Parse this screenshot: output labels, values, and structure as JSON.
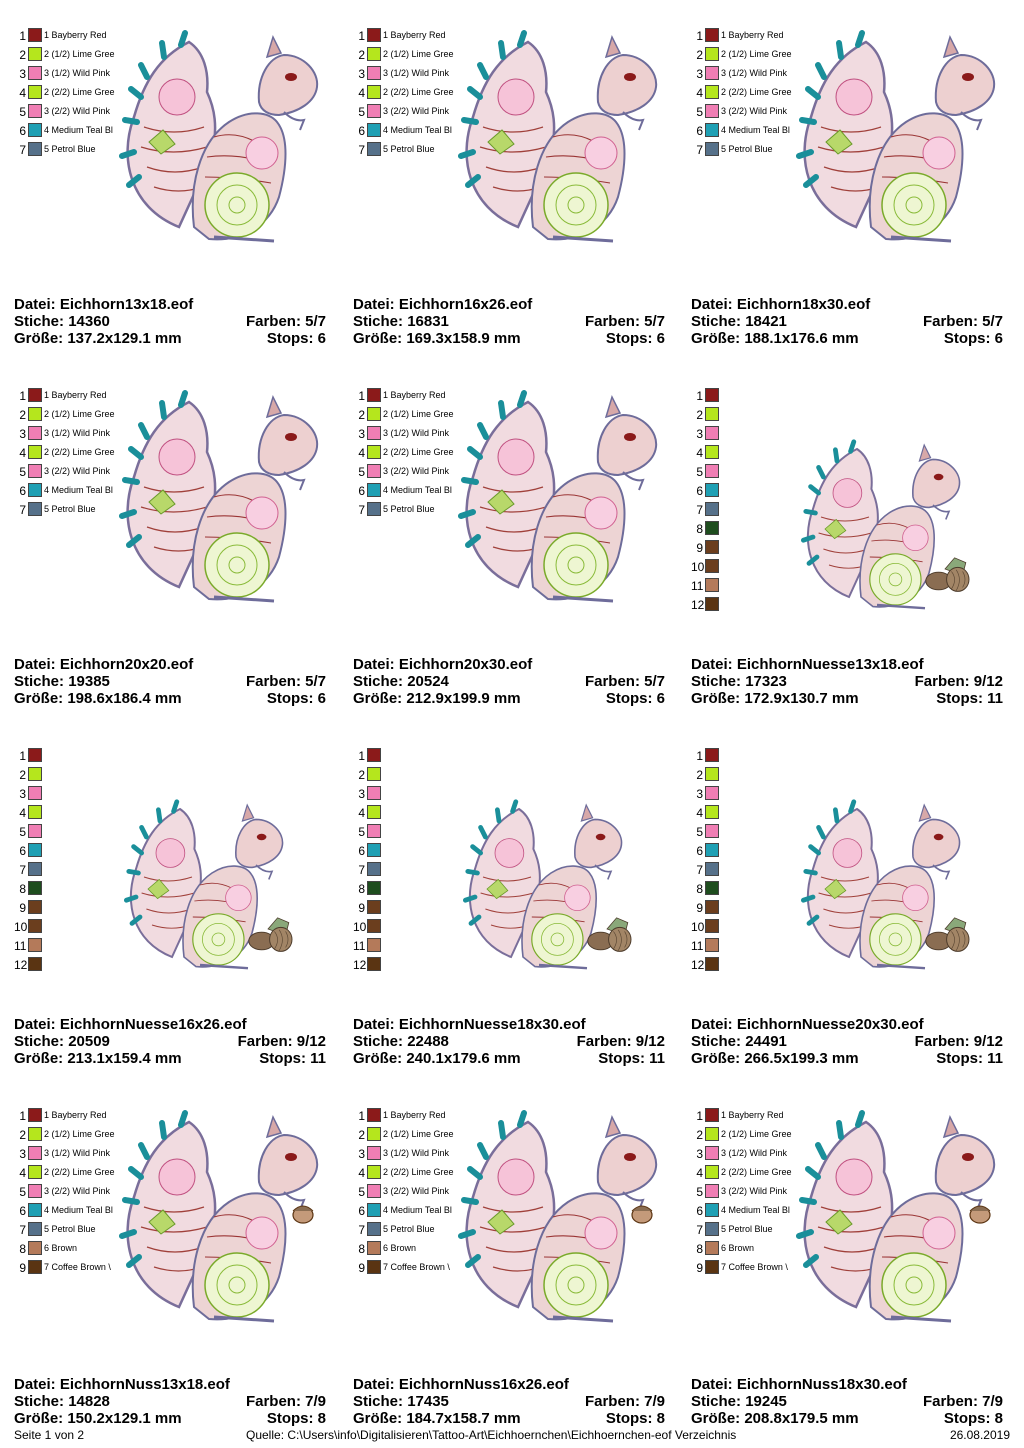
{
  "labels": {
    "file": "Datei:",
    "stitches": "Stiche:",
    "size": "Größe:",
    "colors": "Farben:",
    "stops": "Stops:"
  },
  "palette": {
    "bayberry_red": "#8B1A1A",
    "lime_green": "#B5E61D",
    "wild_pink": "#F07EB4",
    "medium_teal": "#1FA0B4",
    "petrol_blue": "#56718A",
    "dark_green": "#1E4D1E",
    "coffee_brown": "#6B3E1E",
    "brown": "#B47A5A",
    "dark_brown": "#5A3412"
  },
  "swatch_sets": {
    "basic": [
      {
        "num": "1",
        "color": "#8B1A1A",
        "label": "1 Bayberry Red"
      },
      {
        "num": "2",
        "color": "#B5E61D",
        "label": "2 (1/2) Lime Gree"
      },
      {
        "num": "3",
        "color": "#F07EB4",
        "label": "3 (1/2) Wild Pink"
      },
      {
        "num": "4",
        "color": "#B5E61D",
        "label": "2 (2/2) Lime Gree"
      },
      {
        "num": "5",
        "color": "#F07EB4",
        "label": "3 (2/2) Wild Pink"
      },
      {
        "num": "6",
        "color": "#1FA0B4",
        "label": "4 Medium Teal Bl"
      },
      {
        "num": "7",
        "color": "#56718A",
        "label": "5 Petrol Blue"
      }
    ],
    "nuesse": [
      {
        "num": "1",
        "color": "#8B1A1A",
        "label": ""
      },
      {
        "num": "2",
        "color": "#B5E61D",
        "label": ""
      },
      {
        "num": "3",
        "color": "#F07EB4",
        "label": ""
      },
      {
        "num": "4",
        "color": "#B5E61D",
        "label": ""
      },
      {
        "num": "5",
        "color": "#F07EB4",
        "label": ""
      },
      {
        "num": "6",
        "color": "#1FA0B4",
        "label": ""
      },
      {
        "num": "7",
        "color": "#56718A",
        "label": ""
      },
      {
        "num": "8",
        "color": "#1E4D1E",
        "label": ""
      },
      {
        "num": "9",
        "color": "#6B3E1E",
        "label": ""
      },
      {
        "num": "10",
        "color": "#6B3E1E",
        "label": ""
      },
      {
        "num": "11",
        "color": "#B47A5A",
        "label": ""
      },
      {
        "num": "12",
        "color": "#5A3412",
        "label": ""
      }
    ],
    "nuss": [
      {
        "num": "1",
        "color": "#8B1A1A",
        "label": "1 Bayberry Red"
      },
      {
        "num": "2",
        "color": "#B5E61D",
        "label": "2 (1/2) Lime Gree"
      },
      {
        "num": "3",
        "color": "#F07EB4",
        "label": "3 (1/2) Wild Pink"
      },
      {
        "num": "4",
        "color": "#B5E61D",
        "label": "2 (2/2) Lime Gree"
      },
      {
        "num": "5",
        "color": "#F07EB4",
        "label": "3 (2/2) Wild Pink"
      },
      {
        "num": "6",
        "color": "#1FA0B4",
        "label": "4 Medium Teal Bl"
      },
      {
        "num": "7",
        "color": "#56718A",
        "label": "5 Petrol Blue"
      },
      {
        "num": "8",
        "color": "#B47A5A",
        "label": "6 Brown"
      },
      {
        "num": "9",
        "color": "#5A3412",
        "label": "7 Coffee Brown \\"
      }
    ]
  },
  "designs": [
    {
      "file": "Eichhorn13x18.eof",
      "stitches": "14360",
      "colors": "5/7",
      "size": "137.2x129.1 mm",
      "stops": "6",
      "swatches": "basic",
      "variant": "plain"
    },
    {
      "file": "Eichhorn16x26.eof",
      "stitches": "16831",
      "colors": "5/7",
      "size": "169.3x158.9 mm",
      "stops": "6",
      "swatches": "basic",
      "variant": "plain"
    },
    {
      "file": "Eichhorn18x30.eof",
      "stitches": "18421",
      "colors": "5/7",
      "size": "188.1x176.6 mm",
      "stops": "6",
      "swatches": "basic",
      "variant": "plain"
    },
    {
      "file": "Eichhorn20x20.eof",
      "stitches": "19385",
      "colors": "5/7",
      "size": "198.6x186.4 mm",
      "stops": "6",
      "swatches": "basic",
      "variant": "plain"
    },
    {
      "file": "Eichhorn20x30.eof",
      "stitches": "20524",
      "colors": "5/7",
      "size": "212.9x199.9 mm",
      "stops": "6",
      "swatches": "basic",
      "variant": "plain"
    },
    {
      "file": "EichhornNuesse13x18.eof",
      "stitches": "17323",
      "colors": "9/12",
      "size": "172.9x130.7 mm",
      "stops": "11",
      "swatches": "nuesse",
      "variant": "nuts"
    },
    {
      "file": "EichhornNuesse16x26.eof",
      "stitches": "20509",
      "colors": "9/12",
      "size": "213.1x159.4 mm",
      "stops": "11",
      "swatches": "nuesse",
      "variant": "nuts"
    },
    {
      "file": "EichhornNuesse18x30.eof",
      "stitches": "22488",
      "colors": "9/12",
      "size": "240.1x179.6 mm",
      "stops": "11",
      "swatches": "nuesse",
      "variant": "nuts"
    },
    {
      "file": "EichhornNuesse20x30.eof",
      "stitches": "24491",
      "colors": "9/12",
      "size": "266.5x199.3 mm",
      "stops": "11",
      "swatches": "nuesse",
      "variant": "nuts"
    },
    {
      "file": "EichhornNuss13x18.eof",
      "stitches": "14828",
      "colors": "7/9",
      "size": "150.2x129.1 mm",
      "stops": "8",
      "swatches": "nuss",
      "variant": "acorn"
    },
    {
      "file": "EichhornNuss16x26.eof",
      "stitches": "17435",
      "colors": "7/9",
      "size": "184.7x158.7 mm",
      "stops": "8",
      "swatches": "nuss",
      "variant": "acorn"
    },
    {
      "file": "EichhornNuss18x30.eof",
      "stitches": "19245",
      "colors": "7/9",
      "size": "208.8x179.5 mm",
      "stops": "8",
      "swatches": "nuss",
      "variant": "acorn"
    }
  ],
  "footer": {
    "page": "Seite 1 von 2",
    "source": "Quelle: C:\\Users\\info\\Digitalisieren\\Tattoo-Art\\Eichhoernchen\\Eichhoernchen-eof Verzeichnis",
    "date": "26.08.2019"
  }
}
